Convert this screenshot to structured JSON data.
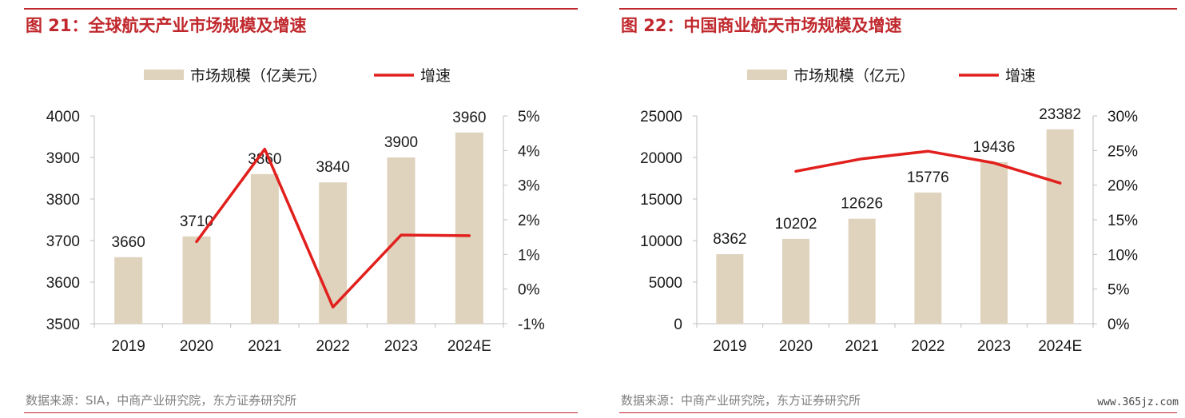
{
  "watermark": "www.365jz.com",
  "chart_data": [
    {
      "type": "bar",
      "title": "图 21：全球航天产业市场规模及增速",
      "source": "数据来源：SIA，中商产业研究院，东方证券研究所",
      "categories": [
        "2019",
        "2020",
        "2021",
        "2022",
        "2023",
        "2024E"
      ],
      "series": [
        {
          "name": "市场规模（亿美元）",
          "type": "bar",
          "axis": "left",
          "values": [
            3660,
            3710,
            3860,
            3840,
            3900,
            3960
          ],
          "labels": [
            "3660",
            "3710",
            "3860",
            "3840",
            "3900",
            "3960"
          ]
        },
        {
          "name": "增速",
          "type": "line",
          "axis": "right",
          "values": [
            null,
            1.37,
            4.04,
            -0.52,
            1.56,
            1.54
          ]
        }
      ],
      "y_left": {
        "min": 3500,
        "max": 4000,
        "ticks": [
          3500,
          3600,
          3700,
          3800,
          3900,
          4000
        ],
        "tick_labels": [
          "3500",
          "3600",
          "3700",
          "3800",
          "3900",
          "4000"
        ]
      },
      "y_right": {
        "min": -1,
        "max": 5,
        "ticks": [
          -1,
          0,
          1,
          2,
          3,
          4,
          5
        ],
        "tick_labels": [
          "-1%",
          "0%",
          "1%",
          "2%",
          "3%",
          "4%",
          "5%"
        ]
      },
      "legend_position": "top-center",
      "grid": false,
      "colors": {
        "bar": "#dfd3bd",
        "line": "#e1201d",
        "axis": "#bfbfbf",
        "text": "#1a1a1a"
      }
    },
    {
      "type": "bar",
      "title": "图 22：中国商业航天市场规模及增速",
      "source": "数据来源：中商产业研究院，东方证券研究所",
      "categories": [
        "2019",
        "2020",
        "2021",
        "2022",
        "2023",
        "2024E"
      ],
      "series": [
        {
          "name": "市场规模（亿元）",
          "type": "bar",
          "axis": "left",
          "values": [
            8362,
            10202,
            12626,
            15776,
            19436,
            23382
          ],
          "labels": [
            "8362",
            "10202",
            "12626",
            "15776",
            "19436",
            "23382"
          ]
        },
        {
          "name": "增速",
          "type": "line",
          "axis": "right",
          "values": [
            null,
            22.0,
            23.8,
            24.9,
            23.2,
            20.3
          ]
        }
      ],
      "y_left": {
        "min": 0,
        "max": 25000,
        "ticks": [
          0,
          5000,
          10000,
          15000,
          20000,
          25000
        ],
        "tick_labels": [
          "0",
          "5000",
          "10000",
          "15000",
          "20000",
          "25000"
        ]
      },
      "y_right": {
        "min": 0,
        "max": 30,
        "ticks": [
          0,
          5,
          10,
          15,
          20,
          25,
          30
        ],
        "tick_labels": [
          "0%",
          "5%",
          "10%",
          "15%",
          "20%",
          "25%",
          "30%"
        ]
      },
      "legend_position": "top-center",
      "grid": false,
      "colors": {
        "bar": "#dfd3bd",
        "line": "#e1201d",
        "axis": "#bfbfbf",
        "text": "#1a1a1a"
      }
    }
  ]
}
